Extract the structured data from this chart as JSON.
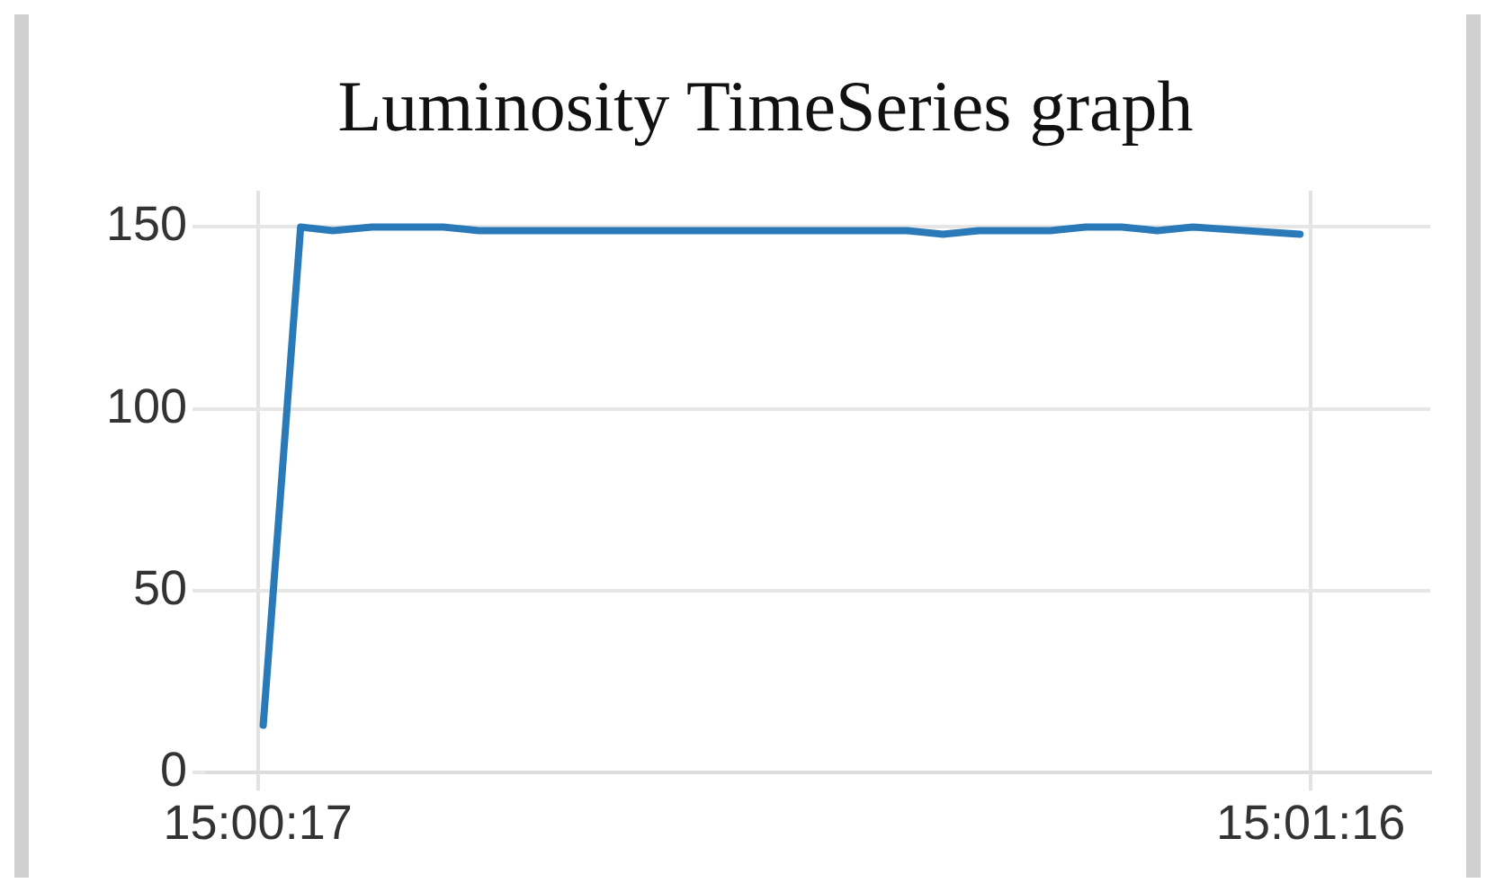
{
  "chart_data": {
    "type": "line",
    "title": "Luminosity TimeSeries graph",
    "x": [
      15.004806,
      15.005389,
      15.005889,
      15.0065,
      15.007611,
      15.008167,
      15.014833,
      15.015389,
      15.015944,
      15.017056,
      15.017611,
      15.018167,
      15.018722,
      15.019278,
      15.020944
    ],
    "series": [
      {
        "color": "#2a7ab9",
        "values": [
          13,
          150,
          149,
          150,
          150,
          149,
          149,
          148,
          149,
          149,
          150,
          150,
          149,
          150,
          148
        ]
      }
    ],
    "xlim": [
      15.003931,
      15.022972
    ],
    "xticks": [
      {
        "value": 15.004722,
        "label": "15:00:17"
      },
      {
        "value": 15.021111,
        "label": "15:01:16"
      }
    ],
    "ylim": [
      0,
      160
    ],
    "yticks": [
      0,
      50,
      100,
      150
    ],
    "grid": true,
    "legend": false,
    "marker": "none",
    "line_style": "solid"
  }
}
